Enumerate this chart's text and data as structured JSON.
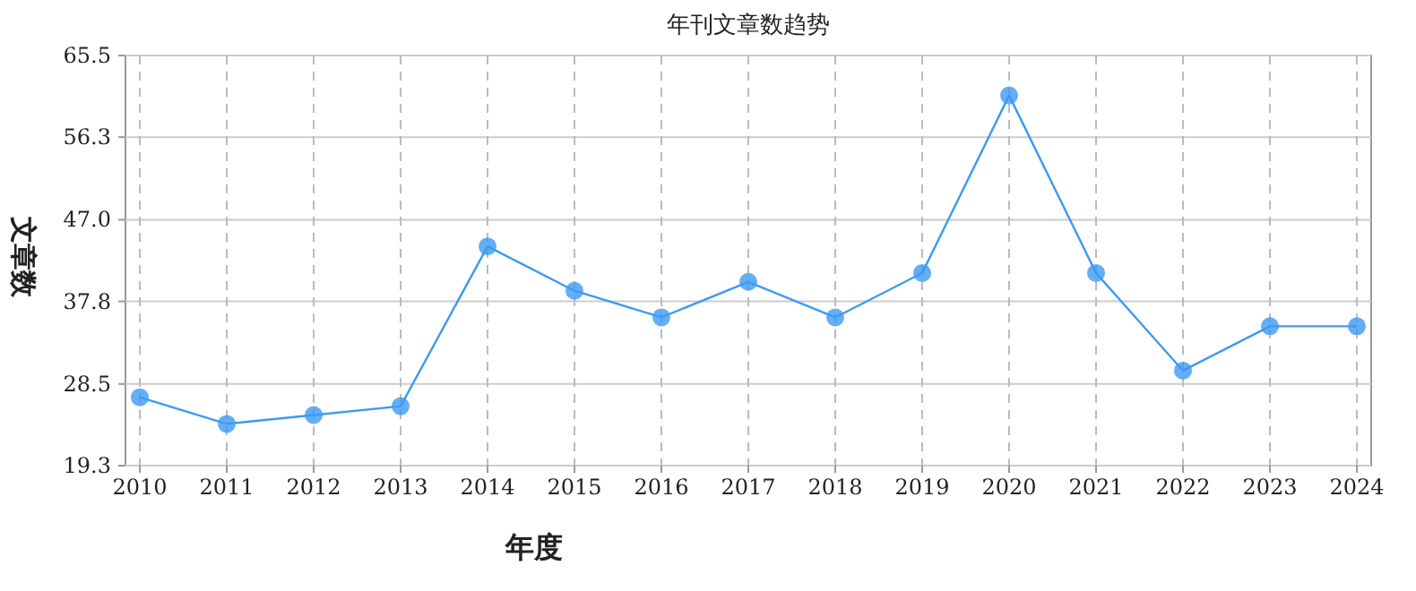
{
  "chart_data": {
    "type": "line",
    "title": "年刊文章数趋势",
    "xlabel": "年度",
    "ylabel": "文章数",
    "categories": [
      "2010",
      "2011",
      "2012",
      "2013",
      "2014",
      "2015",
      "2016",
      "2017",
      "2018",
      "2019",
      "2020",
      "2021",
      "2022",
      "2023",
      "2024"
    ],
    "series": [
      {
        "color": "#3d9af2",
        "values": [
          27,
          24,
          25,
          26,
          44,
          39,
          36,
          40,
          36,
          41,
          61,
          41,
          30,
          35,
          35
        ]
      }
    ],
    "ylim": [
      19.3,
      65.5
    ],
    "yticks": [
      19.3,
      28.5,
      37.8,
      {
        "value": 47,
        "label": "47.0"
      },
      56.3,
      65.5
    ],
    "grid": true,
    "marker": "circle",
    "line_style": "solid"
  }
}
